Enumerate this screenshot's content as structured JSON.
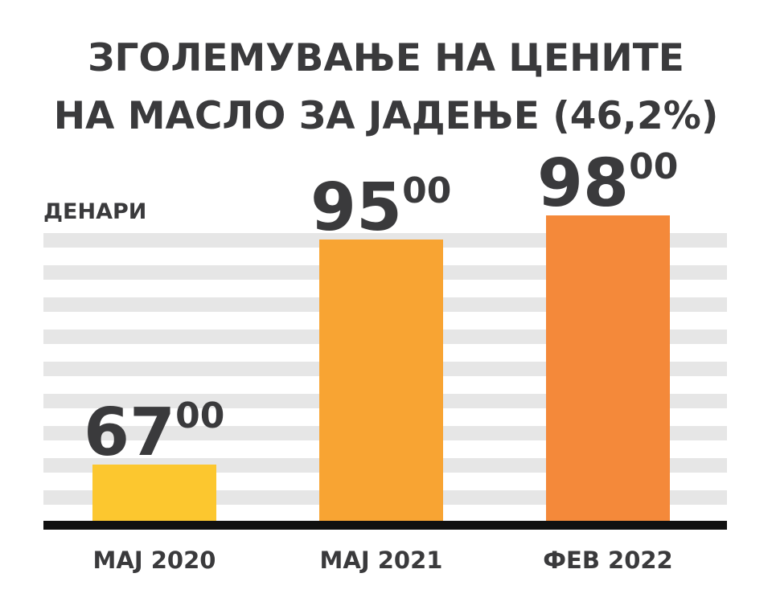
{
  "chart_data": {
    "type": "bar",
    "title_lines": [
      "ЗГОЛЕМУВАЊЕ НА ЦЕНИТЕ",
      "НА МАСЛО ЗА ЈАДЕЊЕ (46,2%)"
    ],
    "ylabel": "ДЕНАРИ",
    "categories": [
      "МАЈ 2020",
      "МАЈ 2021",
      "ФЕВ 2022"
    ],
    "values": [
      67,
      95,
      98
    ],
    "value_labels": [
      {
        "main": "67",
        "sup": "00"
      },
      {
        "main": "95",
        "sup": "00"
      },
      {
        "main": "98",
        "sup": "00"
      }
    ],
    "ylim": [
      60,
      102
    ],
    "grid": true,
    "colors": {
      "bars": [
        "#fcc72f",
        "#f8a433",
        "#f4893a"
      ],
      "text": "#3a3a3c",
      "stripe": "#e6e6e6",
      "baseline": "#111111"
    }
  }
}
